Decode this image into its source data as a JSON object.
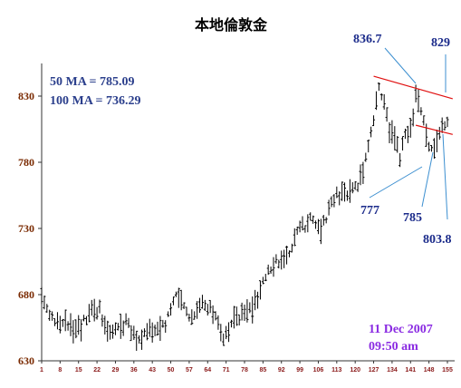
{
  "chart_data": {
    "type": "ohlc",
    "title": "本地倫敦金",
    "xlabel": "",
    "ylabel": "",
    "ylim": [
      630,
      830
    ],
    "xlim": [
      1,
      155
    ],
    "x_ticks": [
      1,
      8,
      15,
      22,
      29,
      36,
      43,
      50,
      57,
      64,
      71,
      78,
      85,
      92,
      99,
      106,
      113,
      120,
      127,
      134,
      141,
      148,
      155
    ],
    "y_ticks": [
      630,
      680,
      730,
      780,
      830
    ],
    "moving_averages": [
      "50 MA = 785.09",
      "100 MA = 736.29"
    ],
    "annotations": [
      "836.7",
      "829",
      "777",
      "785",
      "803.8"
    ],
    "date_stamp": [
      "11 Dec 2007",
      "09:50 am"
    ],
    "trendlines": [
      {
        "x": [
          127,
          157
        ],
        "y": [
          845,
          828
        ]
      },
      {
        "x": [
          143,
          157
        ],
        "y": [
          808,
          801
        ]
      }
    ],
    "waypoints": [
      [
        1,
        678
      ],
      [
        3,
        670
      ],
      [
        7,
        658
      ],
      [
        11,
        658
      ],
      [
        14,
        655
      ],
      [
        17,
        660
      ],
      [
        20,
        670
      ],
      [
        23,
        668
      ],
      [
        25,
        656
      ],
      [
        27,
        650
      ],
      [
        31,
        656
      ],
      [
        33,
        660
      ],
      [
        36,
        650
      ],
      [
        38,
        646
      ],
      [
        41,
        652
      ],
      [
        45,
        654
      ],
      [
        48,
        660
      ],
      [
        50,
        670
      ],
      [
        52,
        680
      ],
      [
        54,
        675
      ],
      [
        56,
        667
      ],
      [
        58,
        664
      ],
      [
        60,
        670
      ],
      [
        62,
        675
      ],
      [
        64,
        670
      ],
      [
        66,
        665
      ],
      [
        68,
        660
      ],
      [
        70,
        648
      ],
      [
        72,
        655
      ],
      [
        75,
        662
      ],
      [
        78,
        666
      ],
      [
        81,
        670
      ],
      [
        83,
        675
      ],
      [
        85,
        688
      ],
      [
        87,
        700
      ],
      [
        90,
        706
      ],
      [
        93,
        706
      ],
      [
        95,
        712
      ],
      [
        97,
        722
      ],
      [
        99,
        734
      ],
      [
        101,
        732
      ],
      [
        103,
        740
      ],
      [
        105,
        735
      ],
      [
        107,
        728
      ],
      [
        109,
        738
      ],
      [
        111,
        748
      ],
      [
        113,
        755
      ],
      [
        115,
        753
      ],
      [
        117,
        758
      ],
      [
        119,
        760
      ],
      [
        121,
        762
      ],
      [
        123,
        775
      ],
      [
        125,
        795
      ],
      [
        127,
        812
      ],
      [
        129,
        836
      ],
      [
        131,
        826
      ],
      [
        133,
        805
      ],
      [
        135,
        797
      ],
      [
        137,
        784
      ],
      [
        139,
        800
      ],
      [
        141,
        804
      ],
      [
        143,
        832
      ],
      [
        145,
        818
      ],
      [
        147,
        800
      ],
      [
        149,
        788
      ],
      [
        151,
        795
      ],
      [
        153,
        805
      ],
      [
        155,
        808
      ]
    ]
  }
}
